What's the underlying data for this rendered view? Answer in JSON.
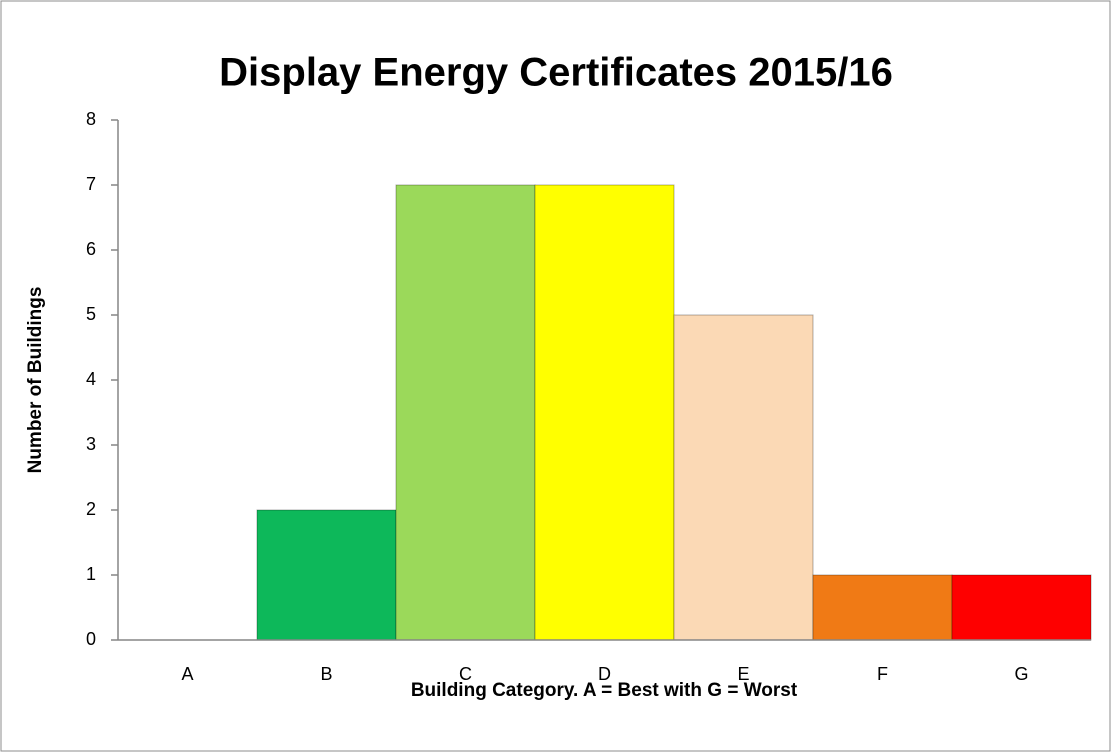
{
  "chart_data": {
    "type": "bar",
    "title": "Display Energy Certificates 2015/16",
    "x_label": "Building Category.  A = Best with G  = Worst",
    "y_label": "Number of Buildings",
    "categories": [
      "A",
      "B",
      "C",
      "D",
      "E",
      "F",
      "G"
    ],
    "values": [
      0,
      2,
      7,
      7,
      5,
      1,
      1
    ],
    "colors": [
      "#0db85a",
      "#0db85a",
      "#9bd95a",
      "#ffff00",
      "#fbd9b5",
      "#f07a15",
      "#fe0000"
    ],
    "ylim": [
      0,
      8
    ],
    "yticks": [
      0,
      1,
      2,
      3,
      4,
      5,
      6,
      7,
      8
    ],
    "grid": false
  }
}
